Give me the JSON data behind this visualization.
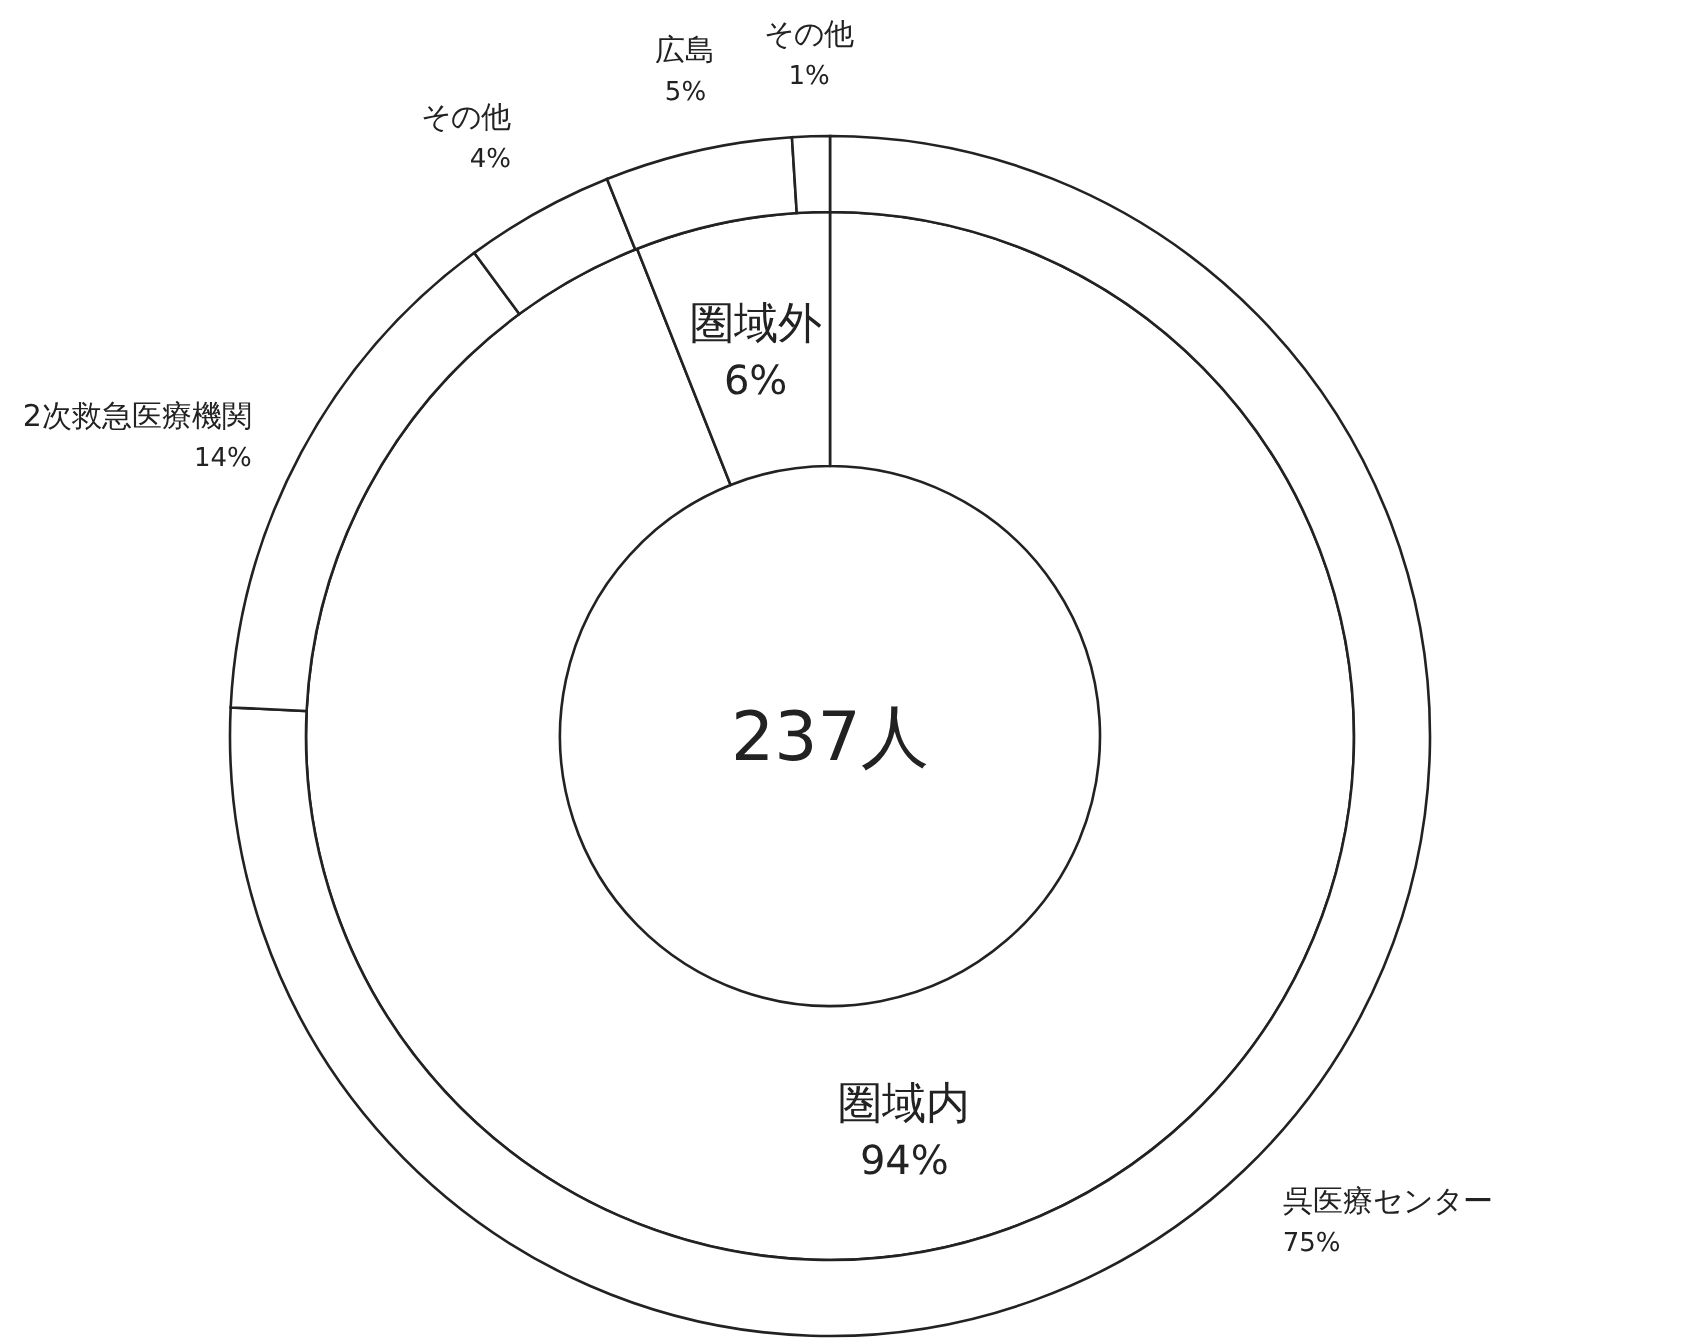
{
  "chart_data": [
    {
      "type": "donut",
      "categories": [
        "圏域内",
        "圏域外"
      ],
      "values": [
        94,
        6
      ],
      "value_labels": [
        "94%",
        "6%"
      ],
      "colors": [
        "#ffffff",
        "#ffffff"
      ],
      "annotations": [
        "237人"
      ]
    },
    {
      "type": "donut",
      "categories": [
        "呉医療センター",
        "2次救急医療機関",
        "その他",
        "広島",
        "その他"
      ],
      "values": [
        75,
        14,
        4,
        5,
        1
      ],
      "value_labels": [
        "75%",
        "14%",
        "4%",
        "5%",
        "1%"
      ],
      "colors": [
        "#ffffff",
        "#ffffff",
        "#ffffff",
        "#ffffff",
        "#ffffff"
      ]
    }
  ]
}
